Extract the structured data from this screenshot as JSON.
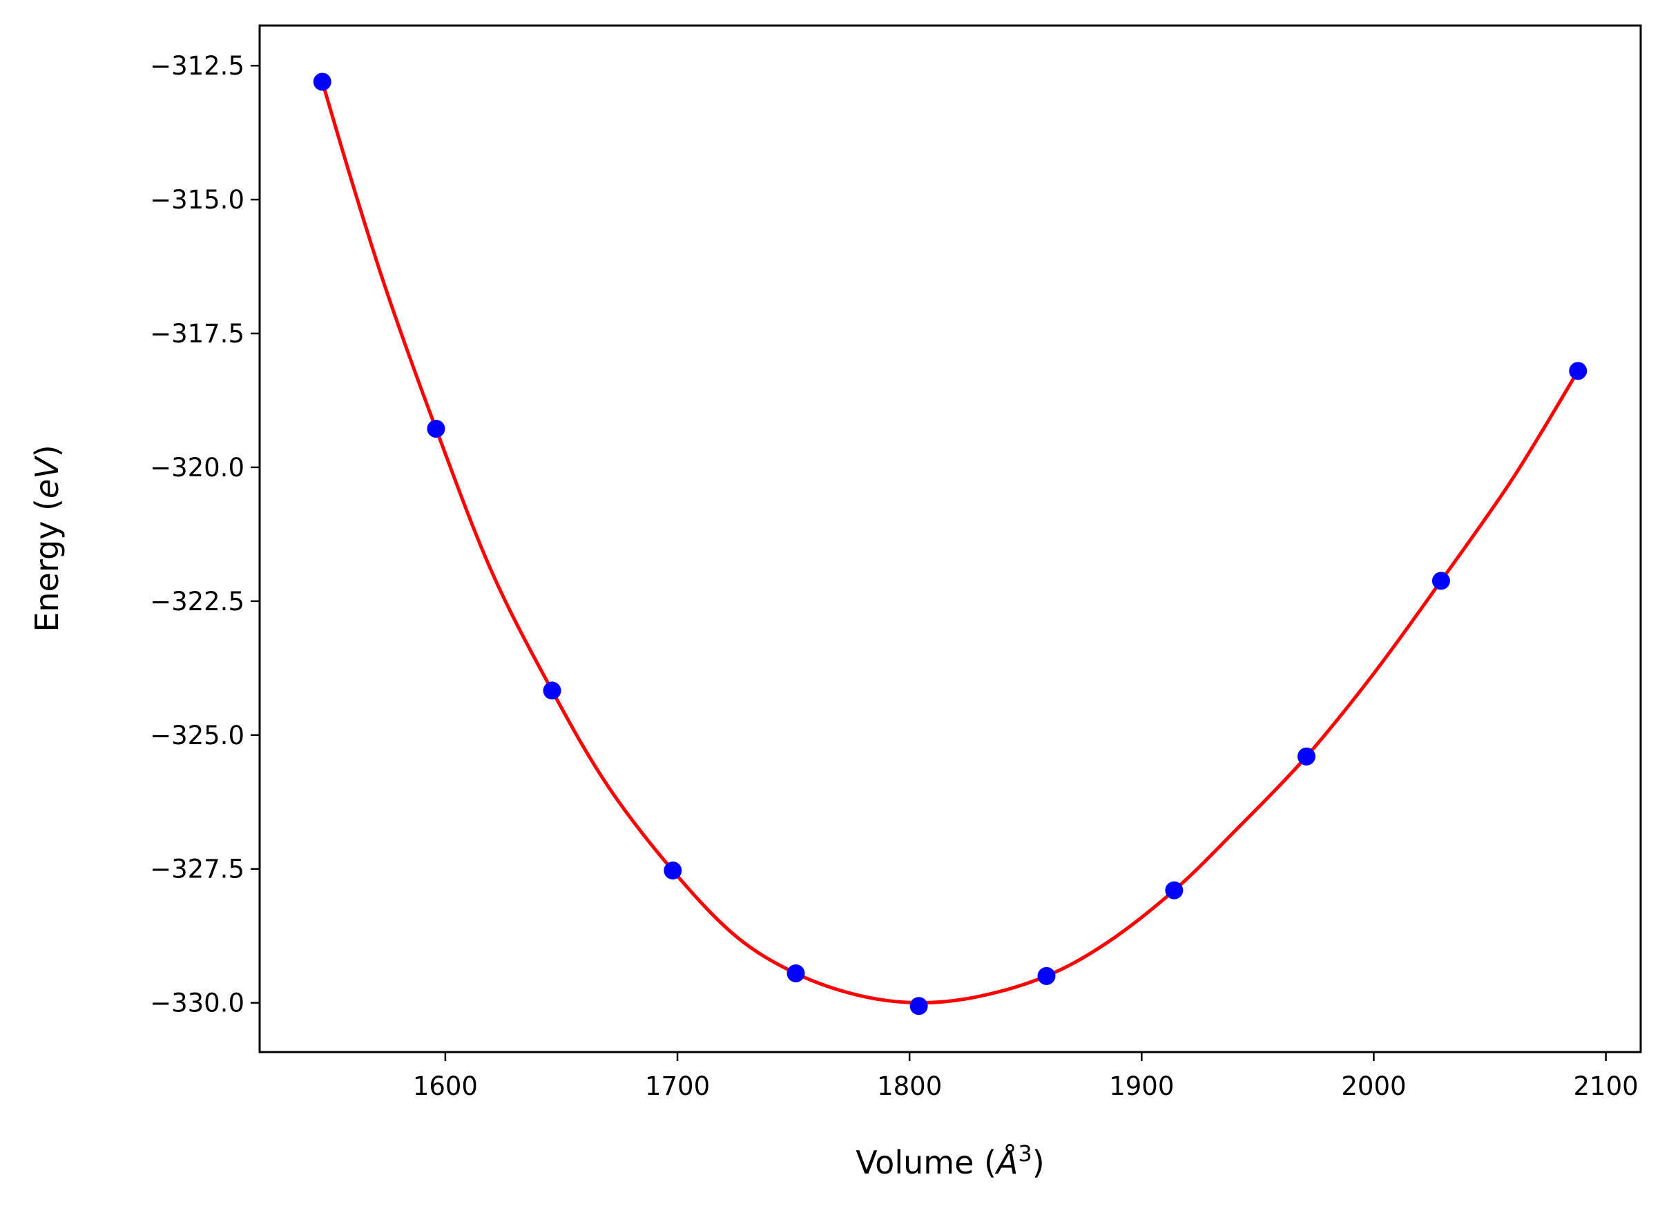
{
  "chart_data": {
    "type": "line",
    "title": "",
    "xlabel": "Volume (Å³)",
    "xlabel_parts": {
      "prefix": "Volume (",
      "symbol": "Å",
      "superscript": "3",
      "suffix": ")"
    },
    "ylabel": "Energy (eV)",
    "ylabel_parts": {
      "prefix": "Energy (",
      "symbol": "eV",
      "suffix": ")"
    },
    "xlim": [
      1520,
      2115
    ],
    "ylim": [
      -330.92,
      -311.75
    ],
    "xticks": [
      1600,
      1700,
      1800,
      1900,
      2000,
      2100
    ],
    "xtick_labels": [
      "1600",
      "1700",
      "1800",
      "1900",
      "2000",
      "2100"
    ],
    "yticks": [
      -312.5,
      -315.0,
      -317.5,
      -320.0,
      -322.5,
      -325.0,
      -327.5,
      -330.0
    ],
    "ytick_labels": [
      "−312.5",
      "−315.0",
      "−317.5",
      "−320.0",
      "−322.5",
      "−325.0",
      "−327.5",
      "−330.0"
    ],
    "grid": false,
    "legend": "none",
    "series": [
      {
        "kind": "scatter",
        "color": "#0000ff",
        "x": [
          1547,
          1596,
          1646,
          1698,
          1751,
          1804,
          1859,
          1914,
          1971,
          2029,
          2088
        ],
        "y": [
          -312.8,
          -319.28,
          -324.17,
          -327.53,
          -329.45,
          -330.06,
          -329.5,
          -327.9,
          -325.4,
          -322.12,
          -318.2
        ]
      },
      {
        "kind": "fit-curve",
        "color": "#ff0000",
        "x": [
          1547,
          1560,
          1575,
          1596,
          1620,
          1646,
          1670,
          1698,
          1725,
          1751,
          1778,
          1804,
          1830,
          1859,
          1885,
          1914,
          1940,
          1971,
          2000,
          2029,
          2060,
          2088
        ],
        "y": [
          -312.8,
          -314.7,
          -316.75,
          -319.28,
          -321.95,
          -324.17,
          -325.95,
          -327.53,
          -328.75,
          -329.45,
          -329.86,
          -330.0,
          -329.88,
          -329.5,
          -328.88,
          -327.9,
          -326.8,
          -325.4,
          -323.85,
          -322.12,
          -320.2,
          -318.2
        ]
      }
    ]
  }
}
